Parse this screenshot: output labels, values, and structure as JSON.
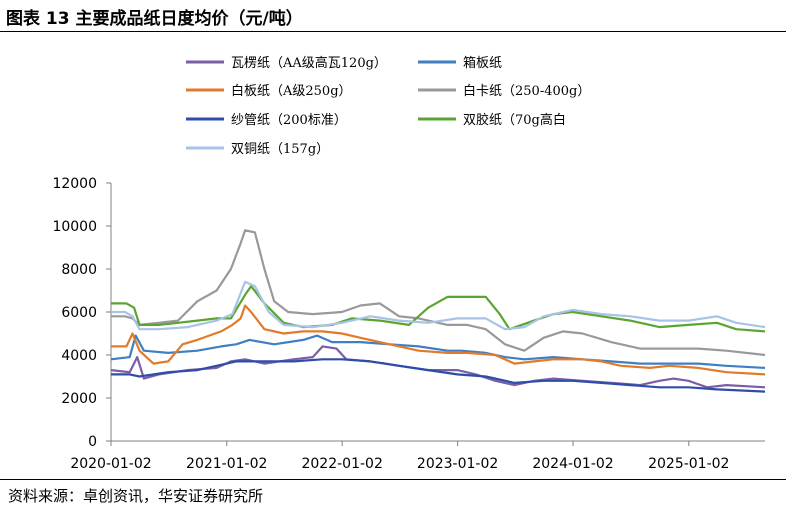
{
  "title": "图表 13 主要成品纸日度均价（元/吨）",
  "source": "资料来源：卓创资讯，华安证券研究所",
  "chart_data": {
    "type": "line",
    "title": "",
    "xlabel": "",
    "ylabel": "",
    "ylim": [
      0,
      12000
    ],
    "yticks": [
      "0",
      "2000",
      "4000",
      "6000",
      "8000",
      "10000",
      "12000"
    ],
    "xticks": [
      "2020-01-02",
      "2021-01-02",
      "2022-01-02",
      "2023-01-02",
      "2024-01-02",
      "2025-01-02"
    ],
    "x_start": "2020-01-02",
    "x_end": "2025-08-31",
    "grid": false,
    "legend_position": "top",
    "series": [
      {
        "name": "瓦楞纸（AA级高瓦120g）",
        "color": "#7b5ea7",
        "points": [
          [
            "2020-01-02",
            3300
          ],
          [
            "2020-03-01",
            3200
          ],
          [
            "2020-03-25",
            3900
          ],
          [
            "2020-04-15",
            2900
          ],
          [
            "2020-06-01",
            3100
          ],
          [
            "2020-09-01",
            3300
          ],
          [
            "2020-12-01",
            3400
          ],
          [
            "2021-01-15",
            3700
          ],
          [
            "2021-03-01",
            3800
          ],
          [
            "2021-05-01",
            3600
          ],
          [
            "2021-08-01",
            3800
          ],
          [
            "2021-10-01",
            3900
          ],
          [
            "2021-11-01",
            4400
          ],
          [
            "2021-12-15",
            4300
          ],
          [
            "2022-01-15",
            3800
          ],
          [
            "2022-04-01",
            3700
          ],
          [
            "2022-07-01",
            3500
          ],
          [
            "2022-10-01",
            3300
          ],
          [
            "2023-01-01",
            3300
          ],
          [
            "2023-03-01",
            3100
          ],
          [
            "2023-05-01",
            2800
          ],
          [
            "2023-07-01",
            2600
          ],
          [
            "2023-09-01",
            2800
          ],
          [
            "2023-11-01",
            2900
          ],
          [
            "2024-02-01",
            2800
          ],
          [
            "2024-05-01",
            2700
          ],
          [
            "2024-08-01",
            2600
          ],
          [
            "2024-10-01",
            2800
          ],
          [
            "2024-11-15",
            2900
          ],
          [
            "2025-01-01",
            2800
          ],
          [
            "2025-03-01",
            2500
          ],
          [
            "2025-05-01",
            2600
          ],
          [
            "2025-08-31",
            2500
          ]
        ]
      },
      {
        "name": "箱板纸",
        "color": "#3f7fc2",
        "points": [
          [
            "2020-01-02",
            3800
          ],
          [
            "2020-03-01",
            3900
          ],
          [
            "2020-03-20",
            4900
          ],
          [
            "2020-04-15",
            4200
          ],
          [
            "2020-07-01",
            4100
          ],
          [
            "2020-10-01",
            4200
          ],
          [
            "2020-12-15",
            4400
          ],
          [
            "2021-02-01",
            4500
          ],
          [
            "2021-03-15",
            4700
          ],
          [
            "2021-06-01",
            4500
          ],
          [
            "2021-09-01",
            4700
          ],
          [
            "2021-10-15",
            4900
          ],
          [
            "2021-12-01",
            4600
          ],
          [
            "2022-03-01",
            4600
          ],
          [
            "2022-06-01",
            4500
          ],
          [
            "2022-09-01",
            4400
          ],
          [
            "2022-12-01",
            4200
          ],
          [
            "2023-01-15",
            4200
          ],
          [
            "2023-04-01",
            4100
          ],
          [
            "2023-06-01",
            3900
          ],
          [
            "2023-08-01",
            3800
          ],
          [
            "2023-11-01",
            3900
          ],
          [
            "2024-02-01",
            3800
          ],
          [
            "2024-05-01",
            3700
          ],
          [
            "2024-08-01",
            3600
          ],
          [
            "2024-11-01",
            3600
          ],
          [
            "2025-02-01",
            3600
          ],
          [
            "2025-05-01",
            3500
          ],
          [
            "2025-08-31",
            3400
          ]
        ]
      },
      {
        "name": "白板纸（A级250g）",
        "color": "#e07b2c",
        "points": [
          [
            "2020-01-02",
            4400
          ],
          [
            "2020-02-20",
            4400
          ],
          [
            "2020-03-10",
            5000
          ],
          [
            "2020-04-01",
            4200
          ],
          [
            "2020-05-15",
            3600
          ],
          [
            "2020-07-01",
            3700
          ],
          [
            "2020-08-15",
            4500
          ],
          [
            "2020-10-01",
            4700
          ],
          [
            "2020-12-15",
            5100
          ],
          [
            "2021-01-20",
            5400
          ],
          [
            "2021-02-15",
            5700
          ],
          [
            "2021-03-01",
            6300
          ],
          [
            "2021-03-20",
            6000
          ],
          [
            "2021-05-01",
            5200
          ],
          [
            "2021-07-01",
            5000
          ],
          [
            "2021-09-01",
            5100
          ],
          [
            "2021-11-01",
            5100
          ],
          [
            "2022-01-01",
            5000
          ],
          [
            "2022-03-01",
            4800
          ],
          [
            "2022-06-01",
            4500
          ],
          [
            "2022-09-01",
            4200
          ],
          [
            "2022-12-01",
            4100
          ],
          [
            "2023-02-01",
            4100
          ],
          [
            "2023-05-01",
            4000
          ],
          [
            "2023-07-01",
            3600
          ],
          [
            "2023-09-01",
            3700
          ],
          [
            "2023-11-01",
            3800
          ],
          [
            "2024-02-01",
            3800
          ],
          [
            "2024-04-01",
            3700
          ],
          [
            "2024-06-01",
            3500
          ],
          [
            "2024-09-01",
            3400
          ],
          [
            "2024-11-01",
            3500
          ],
          [
            "2025-02-01",
            3400
          ],
          [
            "2025-05-01",
            3200
          ],
          [
            "2025-08-31",
            3100
          ]
        ]
      },
      {
        "name": "白卡纸（250-400g）",
        "color": "#999999",
        "points": [
          [
            "2020-01-02",
            5800
          ],
          [
            "2020-02-15",
            5800
          ],
          [
            "2020-03-10",
            5700
          ],
          [
            "2020-04-01",
            5400
          ],
          [
            "2020-06-01",
            5500
          ],
          [
            "2020-08-01",
            5600
          ],
          [
            "2020-10-01",
            6500
          ],
          [
            "2020-12-01",
            7000
          ],
          [
            "2021-01-15",
            8000
          ],
          [
            "2021-02-15",
            9200
          ],
          [
            "2021-03-01",
            9800
          ],
          [
            "2021-04-01",
            9700
          ],
          [
            "2021-05-01",
            8000
          ],
          [
            "2021-06-01",
            6500
          ],
          [
            "2021-07-15",
            6000
          ],
          [
            "2021-10-01",
            5900
          ],
          [
            "2022-01-01",
            6000
          ],
          [
            "2022-03-01",
            6300
          ],
          [
            "2022-05-01",
            6400
          ],
          [
            "2022-07-01",
            5800
          ],
          [
            "2022-09-01",
            5700
          ],
          [
            "2022-12-01",
            5400
          ],
          [
            "2023-02-01",
            5400
          ],
          [
            "2023-04-01",
            5200
          ],
          [
            "2023-06-01",
            4500
          ],
          [
            "2023-08-01",
            4200
          ],
          [
            "2023-10-01",
            4800
          ],
          [
            "2023-12-01",
            5100
          ],
          [
            "2024-02-01",
            5000
          ],
          [
            "2024-05-01",
            4600
          ],
          [
            "2024-08-01",
            4300
          ],
          [
            "2024-11-01",
            4300
          ],
          [
            "2025-02-01",
            4300
          ],
          [
            "2025-05-01",
            4200
          ],
          [
            "2025-08-31",
            4000
          ]
        ]
      },
      {
        "name": "纱管纸（200标准）",
        "color": "#2e4da8",
        "points": [
          [
            "2020-01-02",
            3100
          ],
          [
            "2020-03-01",
            3100
          ],
          [
            "2020-04-01",
            3000
          ],
          [
            "2020-07-01",
            3200
          ],
          [
            "2020-10-01",
            3300
          ],
          [
            "2020-12-01",
            3500
          ],
          [
            "2021-02-01",
            3700
          ],
          [
            "2021-05-01",
            3700
          ],
          [
            "2021-08-01",
            3700
          ],
          [
            "2021-11-01",
            3800
          ],
          [
            "2022-01-01",
            3800
          ],
          [
            "2022-04-01",
            3700
          ],
          [
            "2022-07-01",
            3500
          ],
          [
            "2022-10-01",
            3300
          ],
          [
            "2023-01-01",
            3100
          ],
          [
            "2023-04-01",
            3000
          ],
          [
            "2023-07-01",
            2700
          ],
          [
            "2023-10-01",
            2800
          ],
          [
            "2024-01-01",
            2800
          ],
          [
            "2024-04-01",
            2700
          ],
          [
            "2024-07-01",
            2600
          ],
          [
            "2024-10-01",
            2500
          ],
          [
            "2025-01-01",
            2500
          ],
          [
            "2025-04-01",
            2400
          ],
          [
            "2025-08-31",
            2300
          ]
        ]
      },
      {
        "name": "双胶纸（70g高白",
        "color": "#5aa532",
        "points": [
          [
            "2020-01-02",
            6400
          ],
          [
            "2020-02-20",
            6400
          ],
          [
            "2020-03-15",
            6200
          ],
          [
            "2020-04-01",
            5400
          ],
          [
            "2020-06-01",
            5400
          ],
          [
            "2020-08-01",
            5500
          ],
          [
            "2020-10-01",
            5600
          ],
          [
            "2020-12-01",
            5700
          ],
          [
            "2021-01-15",
            5700
          ],
          [
            "2021-03-01",
            6800
          ],
          [
            "2021-03-20",
            7200
          ],
          [
            "2021-05-01",
            6400
          ],
          [
            "2021-07-01",
            5500
          ],
          [
            "2021-09-01",
            5300
          ],
          [
            "2021-12-01",
            5400
          ],
          [
            "2022-02-01",
            5700
          ],
          [
            "2022-05-01",
            5600
          ],
          [
            "2022-08-01",
            5400
          ],
          [
            "2022-10-01",
            6200
          ],
          [
            "2022-12-01",
            6700
          ],
          [
            "2023-02-01",
            6700
          ],
          [
            "2023-04-01",
            6700
          ],
          [
            "2023-05-15",
            5900
          ],
          [
            "2023-06-15",
            5200
          ],
          [
            "2023-09-01",
            5600
          ],
          [
            "2023-11-01",
            5900
          ],
          [
            "2024-01-01",
            6000
          ],
          [
            "2024-04-01",
            5800
          ],
          [
            "2024-07-01",
            5600
          ],
          [
            "2024-10-01",
            5300
          ],
          [
            "2025-01-01",
            5400
          ],
          [
            "2025-04-01",
            5500
          ],
          [
            "2025-06-01",
            5200
          ],
          [
            "2025-08-31",
            5100
          ]
        ]
      },
      {
        "name": "双铜纸（157g）",
        "color": "#a7c3e6",
        "points": [
          [
            "2020-01-02",
            6000
          ],
          [
            "2020-02-15",
            6000
          ],
          [
            "2020-03-10",
            5800
          ],
          [
            "2020-04-01",
            5200
          ],
          [
            "2020-06-01",
            5200
          ],
          [
            "2020-09-01",
            5300
          ],
          [
            "2020-12-01",
            5600
          ],
          [
            "2021-01-20",
            5900
          ],
          [
            "2021-03-01",
            7400
          ],
          [
            "2021-04-01",
            7200
          ],
          [
            "2021-05-15",
            6000
          ],
          [
            "2021-07-01",
            5400
          ],
          [
            "2021-10-01",
            5300
          ],
          [
            "2022-01-01",
            5500
          ],
          [
            "2022-04-01",
            5800
          ],
          [
            "2022-07-01",
            5600
          ],
          [
            "2022-10-01",
            5500
          ],
          [
            "2023-01-01",
            5700
          ],
          [
            "2023-04-01",
            5700
          ],
          [
            "2023-06-01",
            5200
          ],
          [
            "2023-08-01",
            5300
          ],
          [
            "2023-10-01",
            5800
          ],
          [
            "2024-01-01",
            6100
          ],
          [
            "2024-04-01",
            5900
          ],
          [
            "2024-07-01",
            5800
          ],
          [
            "2024-10-01",
            5600
          ],
          [
            "2025-01-01",
            5600
          ],
          [
            "2025-04-01",
            5800
          ],
          [
            "2025-06-01",
            5500
          ],
          [
            "2025-08-31",
            5300
          ]
        ]
      }
    ]
  }
}
